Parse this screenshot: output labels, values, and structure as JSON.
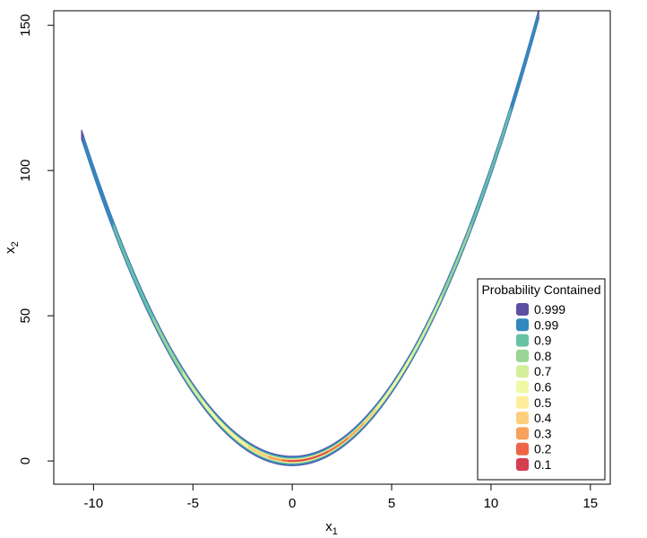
{
  "chart_data": {
    "type": "area",
    "xlabel": "x",
    "xlabel_sub": "1",
    "ylabel": "x",
    "ylabel_sub": "2",
    "xlim": [
      -12,
      16
    ],
    "ylim": [
      -8,
      155
    ],
    "xticks": [
      -10,
      -5,
      0,
      5,
      10,
      15
    ],
    "yticks": [
      0,
      50,
      100,
      150
    ],
    "xtick_labels": [
      "-10",
      "-5",
      "0",
      "5",
      "10",
      "15"
    ],
    "ytick_labels": [
      "0",
      "50",
      "100",
      "150"
    ],
    "legend": {
      "title": "Probability Contained",
      "placement": "bottom-right",
      "entries": [
        {
          "label": "0.999",
          "color": "#5E4FA2"
        },
        {
          "label": "0.99",
          "color": "#3288BD"
        },
        {
          "label": "0.9",
          "color": "#66C2A5"
        },
        {
          "label": "0.8",
          "color": "#99D594"
        },
        {
          "label": "0.7",
          "color": "#D4EE9A"
        },
        {
          "label": "0.6",
          "color": "#F1F8A6"
        },
        {
          "label": "0.5",
          "color": "#FEEE9C"
        },
        {
          "label": "0.4",
          "color": "#FDCF7C"
        },
        {
          "label": "0.3",
          "color": "#F8A15B"
        },
        {
          "label": "0.2",
          "color": "#EE6445"
        },
        {
          "label": "0.1",
          "color": "#D53E4F"
        }
      ]
    },
    "curve": {
      "relation": "x2 = x1^2",
      "x1_range": [
        -10.6,
        12.4
      ]
    },
    "regions": [
      {
        "level": "0.999",
        "x1_range": [
          -10.6,
          12.4
        ],
        "half_width": 1.6
      },
      {
        "level": "0.99",
        "x1_range": [
          -10.5,
          12.35
        ],
        "half_width": 1.3
      },
      {
        "level": "0.9",
        "x1_range": [
          -9.0,
          11.0
        ],
        "half_width": 1.0
      },
      {
        "level": "0.8",
        "x1_range": [
          -7.0,
          9.0
        ],
        "half_width": 0.8
      },
      {
        "level": "0.7",
        "x1_range": [
          -5.5,
          7.5
        ],
        "half_width": 0.65
      },
      {
        "level": "0.6",
        "x1_range": [
          -4.5,
          6.0
        ],
        "half_width": 0.55
      },
      {
        "level": "0.5",
        "x1_range": [
          -3.5,
          5.0
        ],
        "half_width": 0.45
      },
      {
        "level": "0.4",
        "x1_range": [
          -2.2,
          4.2
        ],
        "half_width": 0.38
      },
      {
        "level": "0.3",
        "x1_range": [
          -1.2,
          3.6
        ],
        "half_width": 0.3
      },
      {
        "level": "0.2",
        "x1_range": [
          -0.5,
          2.8
        ],
        "half_width": 0.22
      },
      {
        "level": "0.1",
        "x1_range": [
          -0.2,
          1.8
        ],
        "half_width": 0.14
      }
    ]
  }
}
